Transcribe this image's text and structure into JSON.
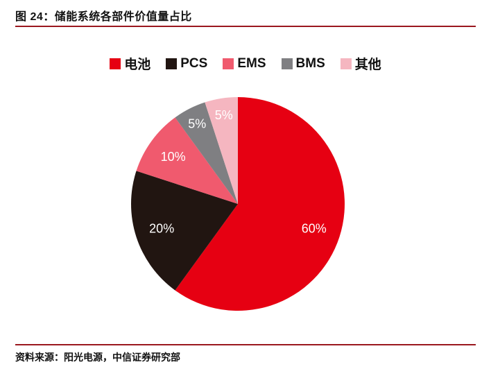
{
  "figure": {
    "title": "图 24：储能系统各部件价值量占比",
    "source": "资料来源：阳光电源，中信证券研究部"
  },
  "colors": {
    "rule": "#9a171e",
    "slice_label": "#ffffff",
    "text": "#111111"
  },
  "chart_data": {
    "type": "pie",
    "title": "储能系统各部件价值量占比",
    "legend_position": "top",
    "start_angle_deg": 0,
    "direction": "clockwise-from-12",
    "series": [
      {
        "label": "电池",
        "value": 60,
        "data_label": "60%",
        "color": "#e60012"
      },
      {
        "label": "PCS",
        "value": 20,
        "data_label": "20%",
        "color": "#211511"
      },
      {
        "label": "EMS",
        "value": 10,
        "data_label": "10%",
        "color": "#f05a6e"
      },
      {
        "label": "BMS",
        "value": 5,
        "data_label": "5%",
        "color": "#7f7f82"
      },
      {
        "label": "其他",
        "value": 5,
        "data_label": "5%",
        "color": "#f5b6c0"
      }
    ]
  }
}
